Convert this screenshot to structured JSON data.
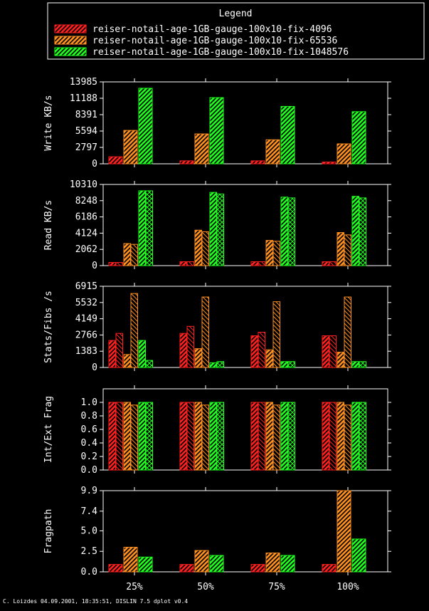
{
  "legend": {
    "title": "Legend",
    "entries": [
      {
        "label": "reiser-notail-age-1GB-gauge-100x10-fix-4096",
        "color": "#ff2020"
      },
      {
        "label": "reiser-notail-age-1GB-gauge-100x10-fix-65536",
        "color": "#ff9020"
      },
      {
        "label": "reiser-notail-age-1GB-gauge-100x10-fix-1048576",
        "color": "#20ff20"
      }
    ]
  },
  "footer": "C. Loizdes 04.09.2001, 18:35:51, DISLIN 7.5 dplot v0.4",
  "chart_data": [
    {
      "type": "bar",
      "ylabel": "Write KB/s",
      "categories": [
        "25%",
        "50%",
        "75%",
        "100%"
      ],
      "yticks": [
        "0",
        "2797",
        "5594",
        "8391",
        "11188",
        "13985"
      ],
      "ylim": [
        0,
        13985
      ],
      "bars_per_series": 1,
      "series": [
        {
          "color": "#ff2020",
          "values": [
            [
              1200
            ],
            [
              500
            ],
            [
              500
            ],
            [
              300
            ]
          ]
        },
        {
          "color": "#ff9020",
          "values": [
            [
              5700
            ],
            [
              5100
            ],
            [
              4100
            ],
            [
              3400
            ]
          ]
        },
        {
          "color": "#20ff20",
          "values": [
            [
              12900
            ],
            [
              11300
            ],
            [
              9800
            ],
            [
              8900
            ]
          ]
        }
      ]
    },
    {
      "type": "bar",
      "ylabel": "Read KB/s",
      "categories": [
        "25%",
        "50%",
        "75%",
        "100%"
      ],
      "yticks": [
        "0",
        "2062",
        "4124",
        "6186",
        "8248",
        "10310"
      ],
      "ylim": [
        0,
        10310
      ],
      "bars_per_series": 2,
      "series": [
        {
          "color": "#ff2020",
          "values": [
            [
              400,
              400
            ],
            [
              500,
              500
            ],
            [
              500,
              500
            ],
            [
              500,
              500
            ]
          ]
        },
        {
          "color": "#ff9020",
          "values": [
            [
              2800,
              2700
            ],
            [
              4500,
              4300
            ],
            [
              3200,
              3100
            ],
            [
              4200,
              3900
            ]
          ]
        },
        {
          "color": "#20ff20",
          "values": [
            [
              9500,
              9500
            ],
            [
              9300,
              9100
            ],
            [
              8700,
              8600
            ],
            [
              8800,
              8600
            ]
          ]
        }
      ]
    },
    {
      "type": "bar",
      "ylabel": "Stats/Fibs /s",
      "categories": [
        "25%",
        "50%",
        "75%",
        "100%"
      ],
      "yticks": [
        "0",
        "1383",
        "2766",
        "4149",
        "5532",
        "6915"
      ],
      "ylim": [
        0,
        6915
      ],
      "bars_per_series": 2,
      "series": [
        {
          "color": "#ff2020",
          "values": [
            [
              2300,
              2900
            ],
            [
              2900,
              3500
            ],
            [
              2700,
              3000
            ],
            [
              2700,
              2700
            ]
          ]
        },
        {
          "color": "#ff9020",
          "values": [
            [
              1100,
              6300
            ],
            [
              1600,
              6000
            ],
            [
              1500,
              5600
            ],
            [
              1300,
              6000
            ]
          ]
        },
        {
          "color": "#20ff20",
          "values": [
            [
              2300,
              600
            ],
            [
              400,
              500
            ],
            [
              500,
              500
            ],
            [
              500,
              500
            ]
          ]
        }
      ]
    },
    {
      "type": "bar",
      "ylabel": "Int/Ext Frag",
      "categories": [
        "25%",
        "50%",
        "75%",
        "100%"
      ],
      "yticks": [
        "0.0",
        "0.2",
        "0.4",
        "0.6",
        "0.8",
        "1.0"
      ],
      "ylim": [
        0,
        1.2
      ],
      "bars_per_series": 2,
      "series": [
        {
          "color": "#ff2020",
          "values": [
            [
              1.0,
              1.0
            ],
            [
              1.0,
              1.0
            ],
            [
              1.0,
              1.0
            ],
            [
              1.0,
              1.0
            ]
          ]
        },
        {
          "color": "#ff9020",
          "values": [
            [
              1.0,
              0.96
            ],
            [
              1.0,
              0.96
            ],
            [
              1.0,
              0.96
            ],
            [
              1.0,
              0.96
            ]
          ]
        },
        {
          "color": "#20ff20",
          "values": [
            [
              1.0,
              1.0
            ],
            [
              1.0,
              1.0
            ],
            [
              1.0,
              1.0
            ],
            [
              1.0,
              1.0
            ]
          ]
        }
      ]
    },
    {
      "type": "bar",
      "ylabel": "Fragpath",
      "categories": [
        "25%",
        "50%",
        "75%",
        "100%"
      ],
      "yticks": [
        "0.0",
        "2.5",
        "5.0",
        "7.4",
        "9.9"
      ],
      "ylim": [
        0,
        9.9
      ],
      "bars_per_series": 1,
      "series": [
        {
          "color": "#ff2020",
          "values": [
            [
              0.9
            ],
            [
              0.9
            ],
            [
              0.9
            ],
            [
              0.9
            ]
          ]
        },
        {
          "color": "#ff9020",
          "values": [
            [
              3.0
            ],
            [
              2.6
            ],
            [
              2.3
            ],
            [
              9.9
            ]
          ]
        },
        {
          "color": "#20ff20",
          "values": [
            [
              1.8
            ],
            [
              2.0
            ],
            [
              2.0
            ],
            [
              4.0
            ]
          ]
        }
      ]
    }
  ]
}
